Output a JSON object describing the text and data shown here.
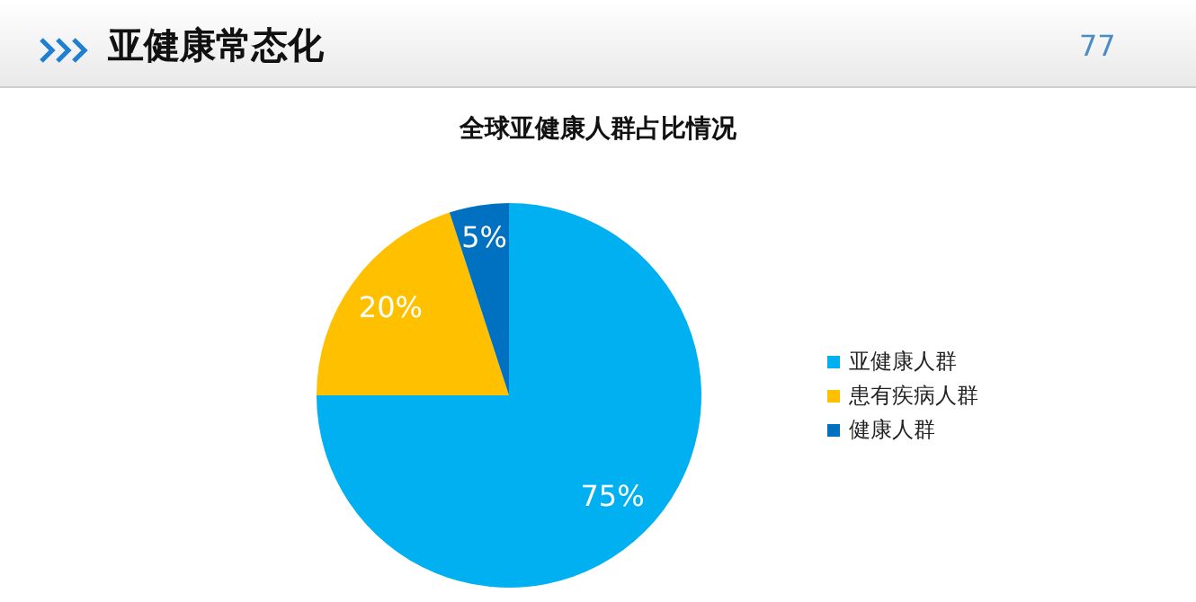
{
  "chart_data": {
    "type": "pie",
    "title": "全球亚健康人群占比情况",
    "categories": [
      "亚健康人群",
      "患有疾病人群",
      "健康人群"
    ],
    "values": [
      75,
      20,
      5
    ],
    "colors": [
      "#00b0f0",
      "#ffc000",
      "#0070c0"
    ],
    "value_labels": [
      "75%",
      "20%",
      "5%"
    ],
    "legend": "right",
    "annotations": [
      "亚健康常态化",
      "77"
    ]
  }
}
